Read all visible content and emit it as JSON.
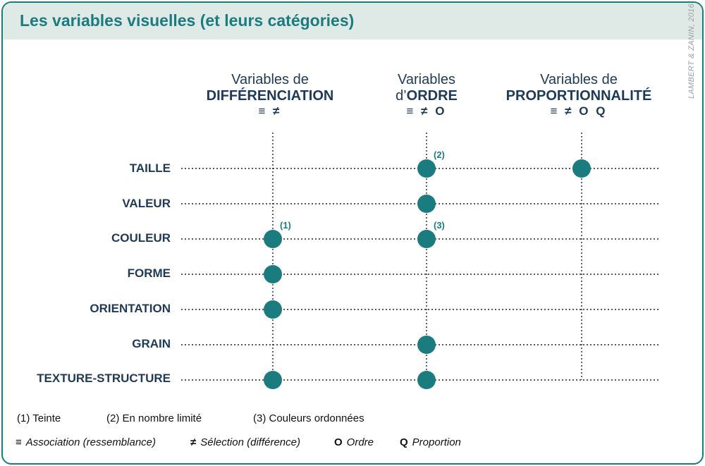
{
  "title": "Les variables visuelles (et leurs catégories)",
  "credit": "LAMBERT & ZANIN, 2016",
  "columns": [
    {
      "line1": "Variables de",
      "line2a": "",
      "line2b": "DIFFÉRENCIATION",
      "symbols": "≡ ≠"
    },
    {
      "line1": "Variables",
      "line2a": "d’",
      "line2b": "ORDRE",
      "symbols": "≡ ≠ O"
    },
    {
      "line1": "Variables de",
      "line2a": "",
      "line2b": "PROPORTIONNALITÉ",
      "symbols": "≡ ≠ O Q"
    }
  ],
  "rows": [
    "TAILLE",
    "VALEUR",
    "COULEUR",
    "FORME",
    "ORIENTATION",
    "GRAIN",
    "TEXTURE-STRUCTURE"
  ],
  "marks": [
    {
      "row": 0,
      "col": 1,
      "note": "(2)"
    },
    {
      "row": 0,
      "col": 2,
      "note": ""
    },
    {
      "row": 1,
      "col": 1,
      "note": ""
    },
    {
      "row": 2,
      "col": 0,
      "note": "(1)"
    },
    {
      "row": 2,
      "col": 1,
      "note": "(3)"
    },
    {
      "row": 3,
      "col": 0,
      "note": ""
    },
    {
      "row": 4,
      "col": 0,
      "note": ""
    },
    {
      "row": 5,
      "col": 1,
      "note": ""
    },
    {
      "row": 6,
      "col": 0,
      "note": ""
    },
    {
      "row": 6,
      "col": 1,
      "note": ""
    }
  ],
  "notes": [
    "(1) Teinte",
    "(2) En nombre limité",
    "(3) Couleurs ordonnées"
  ],
  "legend": [
    {
      "symbol": "≡",
      "text": "Association (ressemblance)"
    },
    {
      "symbol": "≠",
      "text": "Sélection (différence)"
    },
    {
      "symbol": "O",
      "text": "Ordre"
    },
    {
      "symbol": "Q",
      "text": "Proportion"
    }
  ],
  "colors": {
    "accent": "#1b7c80",
    "header_bg": "#dfe9e6",
    "label": "#1e3a56"
  }
}
